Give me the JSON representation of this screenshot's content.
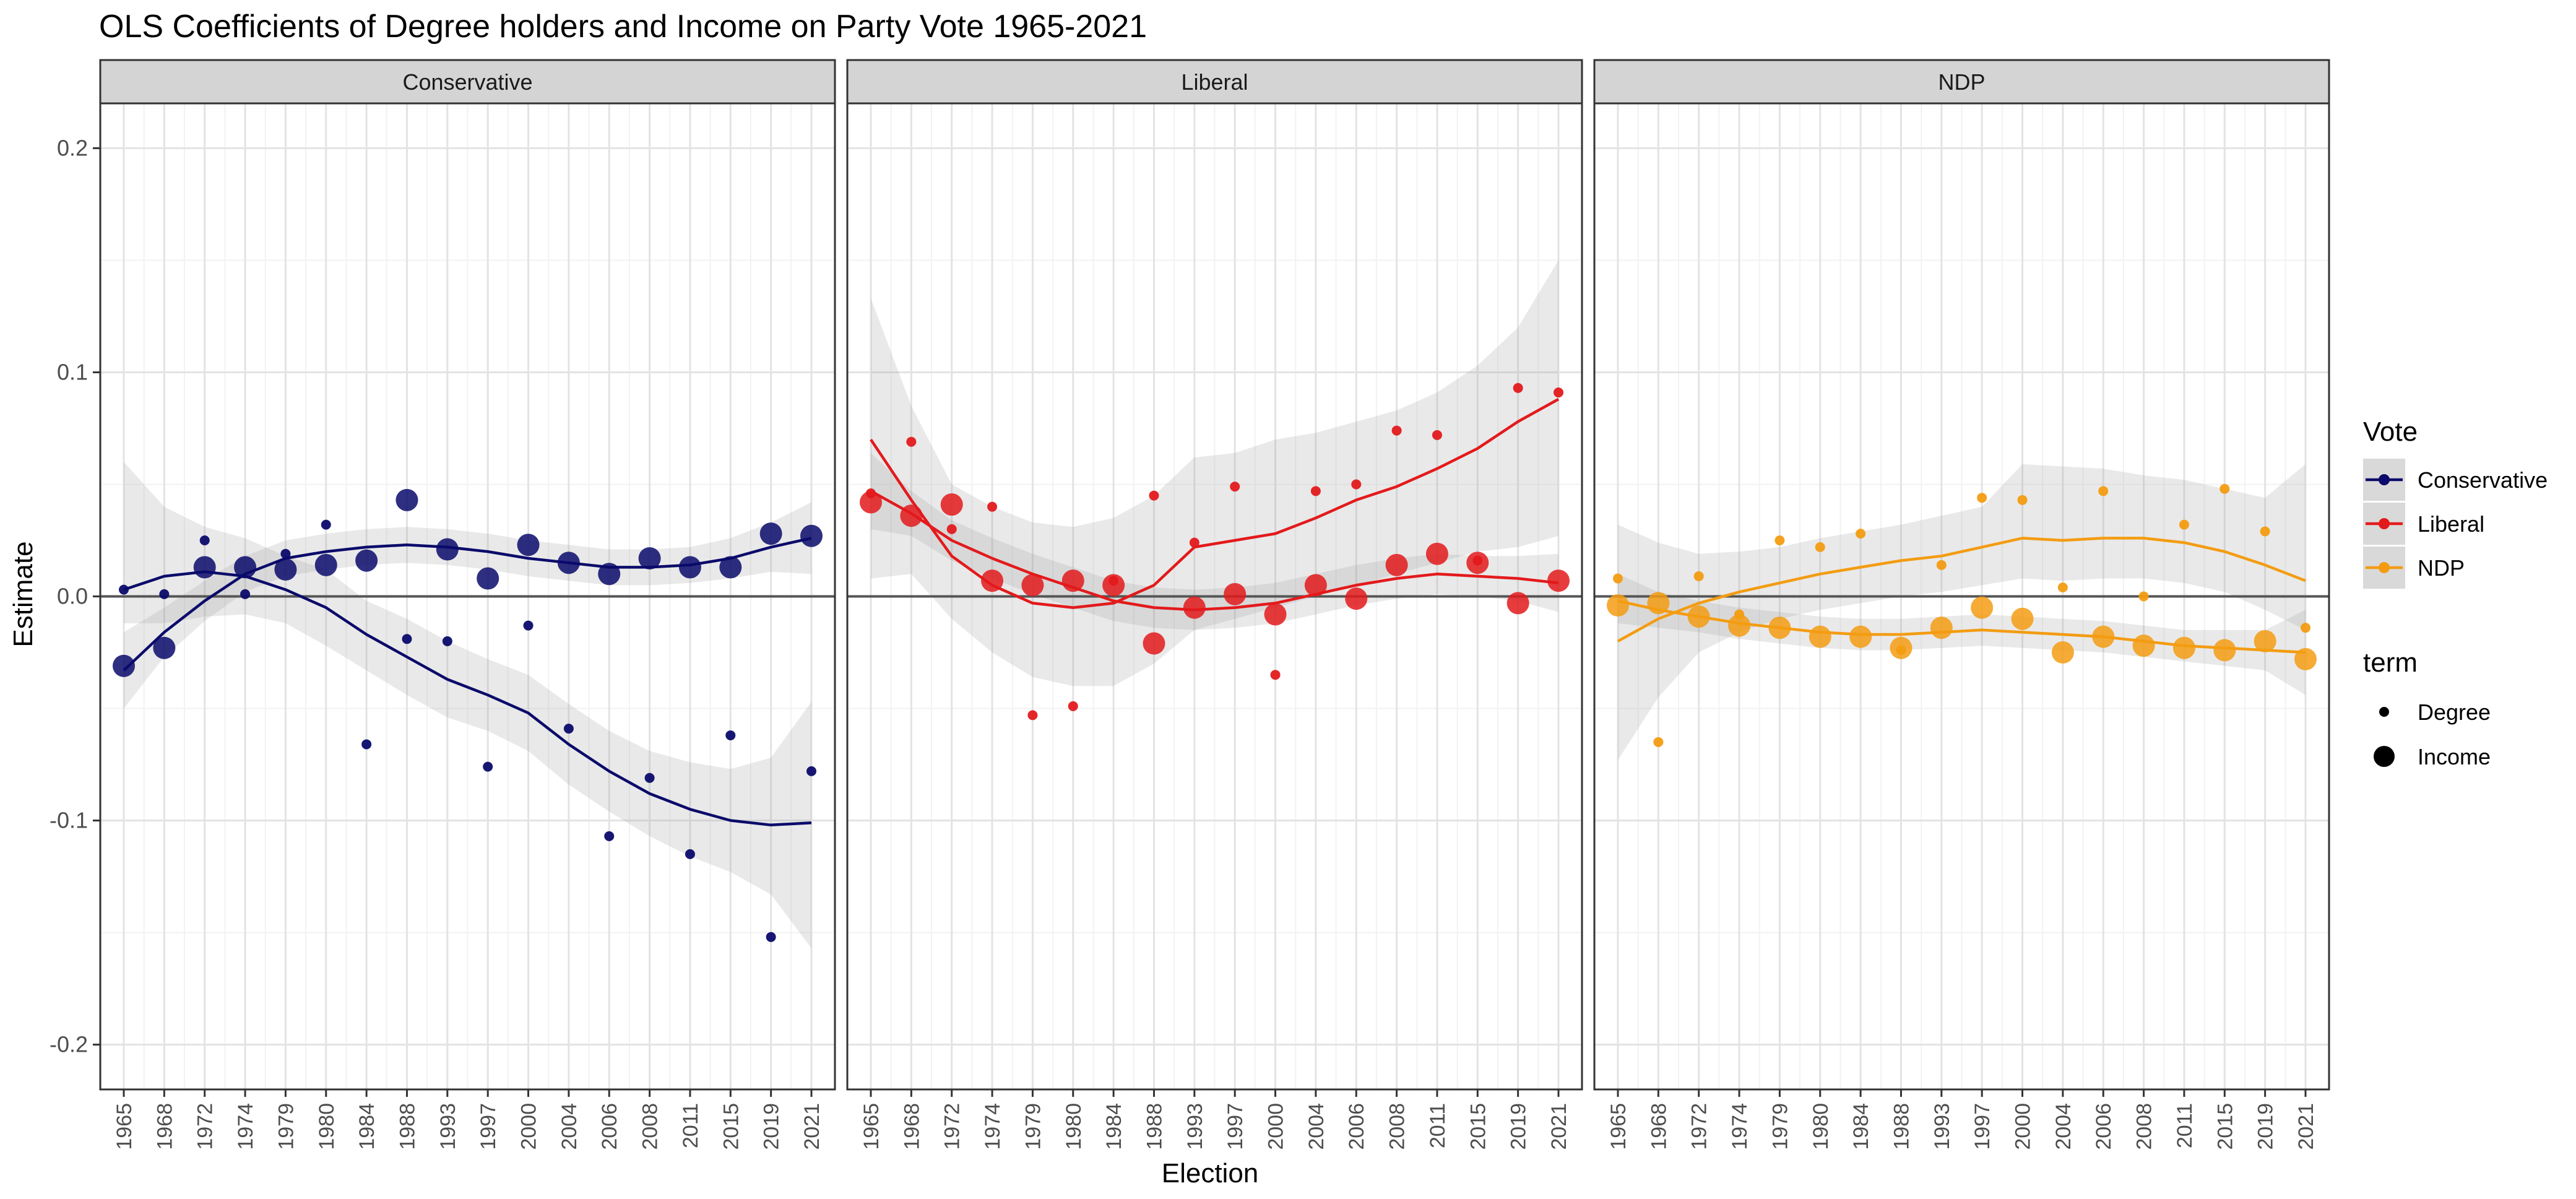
{
  "chart_data": {
    "type": "scatter",
    "title": "OLS Coefficients of Degree holders and Income on Party Vote 1965-2021",
    "xlabel": "Election",
    "ylabel": "Estimate",
    "categories": [
      "1965",
      "1968",
      "1972",
      "1974",
      "1979",
      "1980",
      "1984",
      "1988",
      "1993",
      "1997",
      "2000",
      "2004",
      "2006",
      "2008",
      "2011",
      "2015",
      "2019",
      "2021"
    ],
    "ylim": [
      -0.22,
      0.22
    ],
    "yticks": [
      -0.2,
      -0.1,
      0.0,
      0.1,
      0.2
    ],
    "ytick_labels": [
      "-0.2",
      "-0.1",
      "0.0",
      "0.1",
      "0.2"
    ],
    "hline": 0,
    "grid": true,
    "panels": [
      {
        "name": "Conservative",
        "color": "#0b0b6b",
        "degree": [
          0.003,
          0.001,
          0.025,
          0.001,
          0.019,
          0.032,
          -0.066,
          -0.019,
          -0.02,
          -0.076,
          -0.013,
          -0.059,
          -0.107,
          -0.081,
          -0.115,
          -0.062,
          -0.152,
          -0.078
        ],
        "income": [
          -0.031,
          -0.023,
          0.013,
          0.013,
          0.012,
          0.014,
          0.016,
          0.043,
          0.021,
          0.008,
          0.023,
          0.015,
          0.01,
          0.017,
          0.013,
          0.013,
          0.028,
          0.027
        ],
        "degree_smooth": [
          0.003,
          0.009,
          0.011,
          0.009,
          0.003,
          -0.005,
          -0.017,
          -0.027,
          -0.037,
          -0.044,
          -0.052,
          -0.066,
          -0.078,
          -0.088,
          -0.095,
          -0.1,
          -0.102,
          -0.101
        ],
        "degree_band": [
          [
            -0.012,
            0.06
          ],
          [
            -0.012,
            0.04
          ],
          [
            -0.009,
            0.031
          ],
          [
            -0.008,
            0.026
          ],
          [
            -0.012,
            0.018
          ],
          [
            -0.022,
            0.012
          ],
          [
            -0.033,
            -0.002
          ],
          [
            -0.044,
            -0.01
          ],
          [
            -0.054,
            -0.02
          ],
          [
            -0.06,
            -0.028
          ],
          [
            -0.069,
            -0.035
          ],
          [
            -0.084,
            -0.048
          ],
          [
            -0.096,
            -0.06
          ],
          [
            -0.107,
            -0.069
          ],
          [
            -0.116,
            -0.074
          ],
          [
            -0.123,
            -0.077
          ],
          [
            -0.133,
            -0.072
          ],
          [
            -0.157,
            -0.047
          ]
        ],
        "income_smooth": [
          -0.033,
          -0.016,
          -0.002,
          0.01,
          0.017,
          0.02,
          0.022,
          0.023,
          0.022,
          0.02,
          0.017,
          0.015,
          0.013,
          0.013,
          0.014,
          0.017,
          0.022,
          0.026
        ],
        "income_band": [
          [
            -0.05,
            -0.016
          ],
          [
            -0.027,
            -0.005
          ],
          [
            -0.011,
            0.007
          ],
          [
            0.002,
            0.018
          ],
          [
            0.009,
            0.025
          ],
          [
            0.012,
            0.028
          ],
          [
            0.014,
            0.03
          ],
          [
            0.015,
            0.031
          ],
          [
            0.014,
            0.03
          ],
          [
            0.012,
            0.028
          ],
          [
            0.009,
            0.025
          ],
          [
            0.007,
            0.023
          ],
          [
            0.005,
            0.021
          ],
          [
            0.005,
            0.021
          ],
          [
            0.006,
            0.022
          ],
          [
            0.008,
            0.026
          ],
          [
            0.011,
            0.033
          ],
          [
            0.01,
            0.042
          ]
        ]
      },
      {
        "name": "Liberal",
        "color": "#e31a1c",
        "degree": [
          0.046,
          0.069,
          0.03,
          0.04,
          -0.053,
          -0.049,
          0.007,
          0.045,
          0.024,
          0.049,
          -0.035,
          0.047,
          0.05,
          0.074,
          0.072,
          0.016,
          0.093,
          0.091
        ],
        "income": [
          0.042,
          0.036,
          0.041,
          0.007,
          0.005,
          0.007,
          0.005,
          -0.021,
          -0.005,
          0.001,
          -0.008,
          0.005,
          -0.001,
          0.014,
          0.019,
          0.015,
          -0.003,
          0.007
        ],
        "degree_smooth": [
          0.07,
          0.043,
          0.018,
          0.005,
          -0.003,
          -0.005,
          -0.003,
          0.005,
          0.022,
          0.025,
          0.028,
          0.035,
          0.043,
          0.049,
          0.057,
          0.066,
          0.078,
          0.088
        ],
        "degree_band": [
          [
            0.008,
            0.133
          ],
          [
            0.01,
            0.085
          ],
          [
            -0.01,
            0.05
          ],
          [
            -0.025,
            0.04
          ],
          [
            -0.036,
            0.033
          ],
          [
            -0.04,
            0.031
          ],
          [
            -0.04,
            0.035
          ],
          [
            -0.03,
            0.045
          ],
          [
            -0.015,
            0.062
          ],
          [
            -0.01,
            0.064
          ],
          [
            -0.005,
            0.07
          ],
          [
            0.0,
            0.073
          ],
          [
            0.005,
            0.078
          ],
          [
            0.01,
            0.083
          ],
          [
            0.015,
            0.091
          ],
          [
            0.02,
            0.103
          ],
          [
            0.022,
            0.12
          ],
          [
            0.027,
            0.15
          ]
        ],
        "income_smooth": [
          0.047,
          0.037,
          0.025,
          0.017,
          0.01,
          0.004,
          -0.002,
          -0.005,
          -0.006,
          -0.005,
          -0.003,
          0.001,
          0.005,
          0.008,
          0.01,
          0.009,
          0.008,
          0.006
        ],
        "income_band": [
          [
            0.03,
            0.064
          ],
          [
            0.027,
            0.047
          ],
          [
            0.016,
            0.034
          ],
          [
            0.008,
            0.026
          ],
          [
            0.001,
            0.019
          ],
          [
            -0.005,
            0.013
          ],
          [
            -0.011,
            0.007
          ],
          [
            -0.014,
            0.004
          ],
          [
            -0.015,
            0.003
          ],
          [
            -0.014,
            0.004
          ],
          [
            -0.012,
            0.006
          ],
          [
            -0.008,
            0.01
          ],
          [
            -0.004,
            0.014
          ],
          [
            -0.001,
            0.017
          ],
          [
            0.001,
            0.019
          ],
          [
            0.0,
            0.018
          ],
          [
            -0.002,
            0.018
          ],
          [
            -0.007,
            0.019
          ]
        ]
      },
      {
        "name": "NDP",
        "color": "#f39c12",
        "degree": [
          0.008,
          -0.065,
          0.009,
          -0.008,
          0.025,
          0.022,
          0.028,
          -0.024,
          0.014,
          0.044,
          0.043,
          0.004,
          0.047,
          0.0,
          0.032,
          0.048,
          0.029,
          -0.014
        ],
        "income": [
          -0.004,
          -0.003,
          -0.009,
          -0.013,
          -0.014,
          -0.018,
          -0.018,
          -0.023,
          -0.014,
          -0.005,
          -0.01,
          -0.025,
          -0.018,
          -0.022,
          -0.023,
          -0.024,
          -0.02,
          -0.028
        ],
        "degree_smooth": [
          -0.02,
          -0.01,
          -0.003,
          0.002,
          0.006,
          0.01,
          0.013,
          0.016,
          0.018,
          0.022,
          0.026,
          0.025,
          0.026,
          0.026,
          0.024,
          0.02,
          0.014,
          0.007
        ],
        "degree_band": [
          [
            -0.073,
            0.032
          ],
          [
            -0.045,
            0.024
          ],
          [
            -0.025,
            0.019
          ],
          [
            -0.016,
            0.02
          ],
          [
            -0.01,
            0.022
          ],
          [
            -0.006,
            0.026
          ],
          [
            -0.003,
            0.029
          ],
          [
            0.0,
            0.032
          ],
          [
            0.002,
            0.036
          ],
          [
            0.005,
            0.04
          ],
          [
            0.008,
            0.059
          ],
          [
            0.007,
            0.058
          ],
          [
            0.008,
            0.057
          ],
          [
            0.008,
            0.054
          ],
          [
            0.006,
            0.052
          ],
          [
            0.002,
            0.048
          ],
          [
            -0.006,
            0.044
          ],
          [
            -0.015,
            0.059
          ]
        ],
        "income_smooth": [
          -0.002,
          -0.006,
          -0.009,
          -0.012,
          -0.014,
          -0.016,
          -0.017,
          -0.017,
          -0.016,
          -0.015,
          -0.016,
          -0.017,
          -0.018,
          -0.02,
          -0.022,
          -0.023,
          -0.024,
          -0.025
        ],
        "income_band": [
          [
            -0.012,
            0.01
          ],
          [
            -0.014,
            0.002
          ],
          [
            -0.016,
            -0.002
          ],
          [
            -0.019,
            -0.005
          ],
          [
            -0.021,
            -0.007
          ],
          [
            -0.023,
            -0.009
          ],
          [
            -0.024,
            -0.01
          ],
          [
            -0.024,
            -0.01
          ],
          [
            -0.023,
            -0.009
          ],
          [
            -0.022,
            -0.008
          ],
          [
            -0.023,
            -0.009
          ],
          [
            -0.024,
            -0.01
          ],
          [
            -0.025,
            -0.011
          ],
          [
            -0.027,
            -0.013
          ],
          [
            -0.029,
            -0.015
          ],
          [
            -0.031,
            -0.015
          ],
          [
            -0.033,
            -0.015
          ],
          [
            -0.044,
            -0.006
          ]
        ]
      }
    ],
    "legends": [
      {
        "title": "Vote",
        "entries": [
          {
            "label": "Conservative",
            "color": "#0b0b6b"
          },
          {
            "label": "Liberal",
            "color": "#e31a1c"
          },
          {
            "label": "NDP",
            "color": "#f39c12"
          }
        ]
      },
      {
        "title": "term",
        "entries": [
          {
            "label": "Degree",
            "size": "small"
          },
          {
            "label": "Income",
            "size": "large"
          }
        ]
      }
    ],
    "legend_position": "right"
  }
}
